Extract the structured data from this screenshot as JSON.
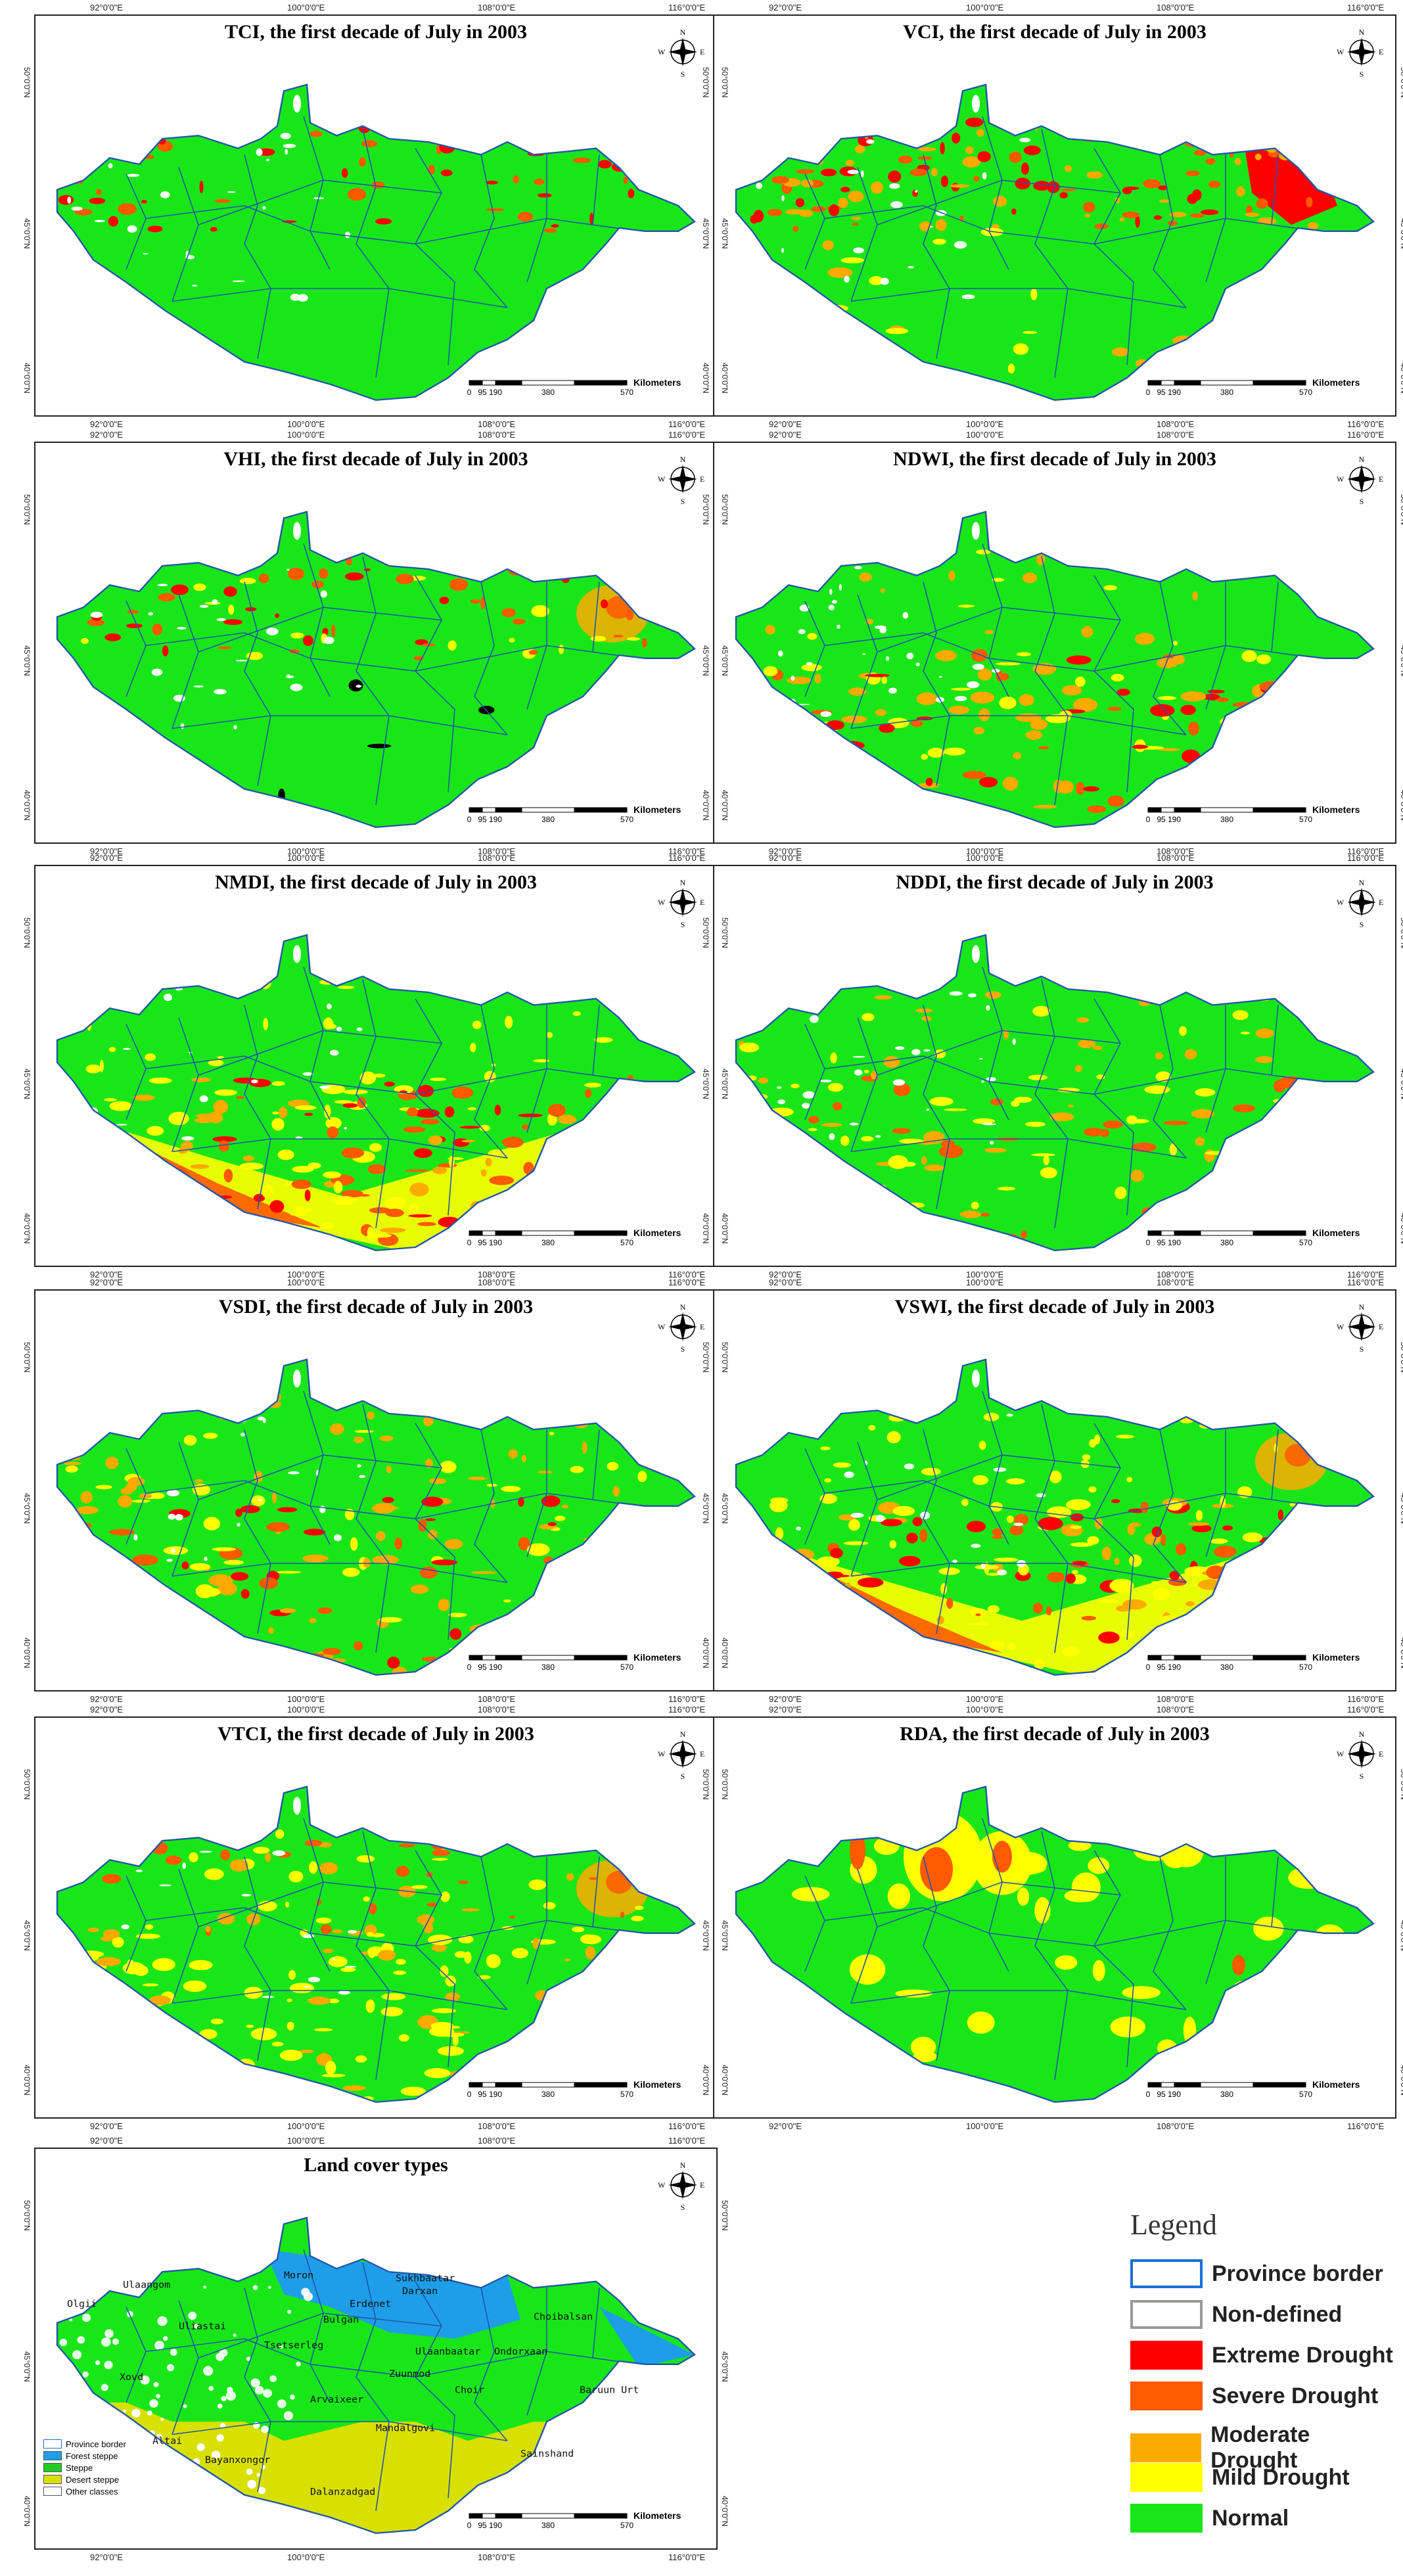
{
  "panels": [
    {
      "id": "tci",
      "title": "TCI, the first decade of July in 2003",
      "theme": "tci"
    },
    {
      "id": "vci",
      "title": "VCI, the first decade of July in 2003",
      "theme": "vci"
    },
    {
      "id": "vhi",
      "title": "VHI, the first decade of July in 2003",
      "theme": "vhi"
    },
    {
      "id": "ndwi",
      "title": "NDWI, the first decade of July in 2003",
      "theme": "ndwi"
    },
    {
      "id": "nmdi",
      "title": "NMDI, the first decade of July in 2003",
      "theme": "nmdi"
    },
    {
      "id": "nddi",
      "title": "NDDI, the first decade of July in 2003",
      "theme": "nddi"
    },
    {
      "id": "vsdi",
      "title": "VSDI, the first decade of July in 2003",
      "theme": "vsdi"
    },
    {
      "id": "vswi",
      "title": "VSWI, the first decade of July in 2003",
      "theme": "vswi"
    },
    {
      "id": "vtci",
      "title": "VTCI, the first decade of July in 2003",
      "theme": "vtci"
    },
    {
      "id": "rda",
      "title": "RDA, the first decade of July in 2003",
      "theme": "rda"
    },
    {
      "id": "landcover",
      "title": "Land cover types",
      "theme": "landcover"
    }
  ],
  "axes": {
    "lon_labels": [
      "92°0'0\"E",
      "100°0'0\"E",
      "108°0'0\"E",
      "116°0'0\"E"
    ],
    "lat_labels": [
      "50°0'0\"N",
      "45°0'0\"N",
      "40°0'0\"N"
    ]
  },
  "scale": {
    "unit": "Kilometers",
    "ticks": [
      "0",
      "95",
      "190",
      "380",
      "570"
    ]
  },
  "compass": {
    "n": "N",
    "s": "S",
    "e": "E",
    "w": "W"
  },
  "legend": {
    "title": "Legend",
    "items": [
      {
        "label": "Province border",
        "color": "#ffffff",
        "border": "#1a6fd6"
      },
      {
        "label": "Non-defined",
        "color": "#ffffff",
        "border": "#999999"
      },
      {
        "label": "Extreme Drought",
        "color": "#ff0000",
        "border": "#ff0000"
      },
      {
        "label": "Severe Drought",
        "color": "#ff5a00",
        "border": "#ff5a00"
      },
      {
        "label": "Moderate Drought",
        "color": "#ffaa00",
        "border": "#ffaa00"
      },
      {
        "label": "Mild Drought",
        "color": "#ffff00",
        "border": "#ffff00"
      },
      {
        "label": "Normal",
        "color": "#19e619",
        "border": "#19e619"
      }
    ]
  },
  "landcover_legend": [
    {
      "label": "Province border",
      "color": "#ffffff",
      "border": "#1a6fd6"
    },
    {
      "label": "Forest steppe",
      "color": "#1e9ee8",
      "border": "#555"
    },
    {
      "label": "Steppe",
      "color": "#22cc22",
      "border": "#555"
    },
    {
      "label": "Desert steppe",
      "color": "#d8e000",
      "border": "#555"
    },
    {
      "label": "Other classes",
      "color": "#ffffff",
      "border": "#555"
    }
  ],
  "cities": [
    "Olgii",
    "Ulaangom",
    "Moron",
    "Sukhbaatar",
    "Darxan",
    "Erdenet",
    "Bulgan",
    "Uliastai",
    "Tsetserleg",
    "Choibalsan",
    "Ulaanbaatar",
    "Ondorxaan",
    "Xovd",
    "Zuunmod",
    "Choir",
    "Arvaixeer",
    "Baruun Urt",
    "Altai",
    "Bayanxongor",
    "Mandalgovi",
    "Sainshand",
    "Dalanzadgad"
  ],
  "colors": {
    "normal": "#19e619",
    "mild": "#ffff00",
    "moderate": "#ffaa00",
    "severe": "#ff5a00",
    "extreme": "#ff0000",
    "border": "#2255aa",
    "forest": "#1e9ee8",
    "desert": "#d8e000"
  }
}
